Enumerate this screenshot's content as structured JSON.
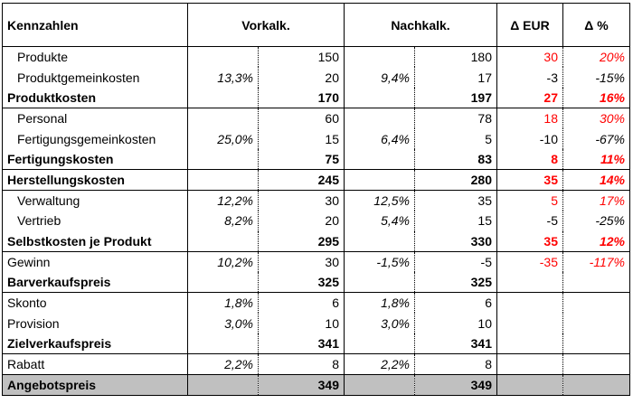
{
  "header": {
    "kennzahlen": "Kennzahlen",
    "vorkalk": "Vorkalk.",
    "nachkalk": "Nachkalk.",
    "delta_eur": "Δ EUR",
    "delta_pct": "Δ %"
  },
  "rows": [
    {
      "label": "Produkte",
      "vpct": "",
      "vval": "150",
      "npct": "",
      "nval": "180",
      "deur": "30",
      "dpct": "20%"
    },
    {
      "label": "Produktgemeinkosten",
      "vpct": "13,3%",
      "vval": "20",
      "npct": "9,4%",
      "nval": "17",
      "deur": "-3",
      "dpct": "-15%"
    },
    {
      "label": "Produktkosten",
      "vpct": "",
      "vval": "170",
      "npct": "",
      "nval": "197",
      "deur": "27",
      "dpct": "16%"
    },
    {
      "label": "Personal",
      "vpct": "",
      "vval": "60",
      "npct": "",
      "nval": "78",
      "deur": "18",
      "dpct": "30%"
    },
    {
      "label": "Fertigungsgemeinkosten",
      "vpct": "25,0%",
      "vval": "15",
      "npct": "6,4%",
      "nval": "5",
      "deur": "-10",
      "dpct": "-67%"
    },
    {
      "label": "Fertigungskosten",
      "vpct": "",
      "vval": "75",
      "npct": "",
      "nval": "83",
      "deur": "8",
      "dpct": "11%"
    },
    {
      "label": "Herstellungskosten",
      "vpct": "",
      "vval": "245",
      "npct": "",
      "nval": "280",
      "deur": "35",
      "dpct": "14%"
    },
    {
      "label": "Verwaltung",
      "vpct": "12,2%",
      "vval": "30",
      "npct": "12,5%",
      "nval": "35",
      "deur": "5",
      "dpct": "17%"
    },
    {
      "label": "Vertrieb",
      "vpct": "8,2%",
      "vval": "20",
      "npct": "5,4%",
      "nval": "15",
      "deur": "-5",
      "dpct": "-25%"
    },
    {
      "label": "Selbstkosten je Produkt",
      "vpct": "",
      "vval": "295",
      "npct": "",
      "nval": "330",
      "deur": "35",
      "dpct": "12%"
    },
    {
      "label": "Gewinn",
      "vpct": "10,2%",
      "vval": "30",
      "npct": "-1,5%",
      "nval": "-5",
      "deur": "-35",
      "dpct": "-117%"
    },
    {
      "label": "Barverkaufspreis",
      "vpct": "",
      "vval": "325",
      "npct": "",
      "nval": "325",
      "deur": "",
      "dpct": ""
    },
    {
      "label": "Skonto",
      "vpct": "1,8%",
      "vval": "6",
      "npct": "1,8%",
      "nval": "6",
      "deur": "",
      "dpct": ""
    },
    {
      "label": "Provision",
      "vpct": "3,0%",
      "vval": "10",
      "npct": "3,0%",
      "nval": "10",
      "deur": "",
      "dpct": ""
    },
    {
      "label": "Zielverkaufspreis",
      "vpct": "",
      "vval": "341",
      "npct": "",
      "nval": "341",
      "deur": "",
      "dpct": ""
    },
    {
      "label": "Rabatt",
      "vpct": "2,2%",
      "vval": "8",
      "npct": "2,2%",
      "nval": "8",
      "deur": "",
      "dpct": ""
    },
    {
      "label": "Angebotspreis",
      "vpct": "",
      "vval": "349",
      "npct": "",
      "nval": "349",
      "deur": "",
      "dpct": ""
    }
  ],
  "colors": {
    "positive_delta": "#ff0000",
    "negative_delta": "#000000",
    "final_row_bg": "#c0c0c0"
  }
}
